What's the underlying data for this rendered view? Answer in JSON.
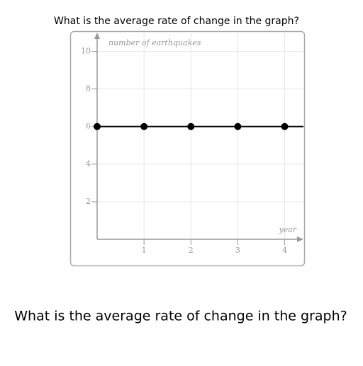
{
  "chart_data": {
    "type": "line",
    "title": "What is the average rate of change in the graph?",
    "question": "What is the average rate of change in the graph?",
    "y_label": "number of earthquakes",
    "x_label": "year",
    "x": [
      0,
      1,
      2,
      3,
      4
    ],
    "series": [
      {
        "name": null,
        "color": "#000000",
        "values": [
          6,
          6,
          6,
          6,
          6
        ]
      }
    ],
    "xlim": [
      0,
      4.4
    ],
    "ylim": [
      0,
      11
    ],
    "xticks": [
      1,
      2,
      3,
      4
    ],
    "yticks": [
      2,
      4,
      6,
      8,
      10
    ],
    "grid": true
  }
}
